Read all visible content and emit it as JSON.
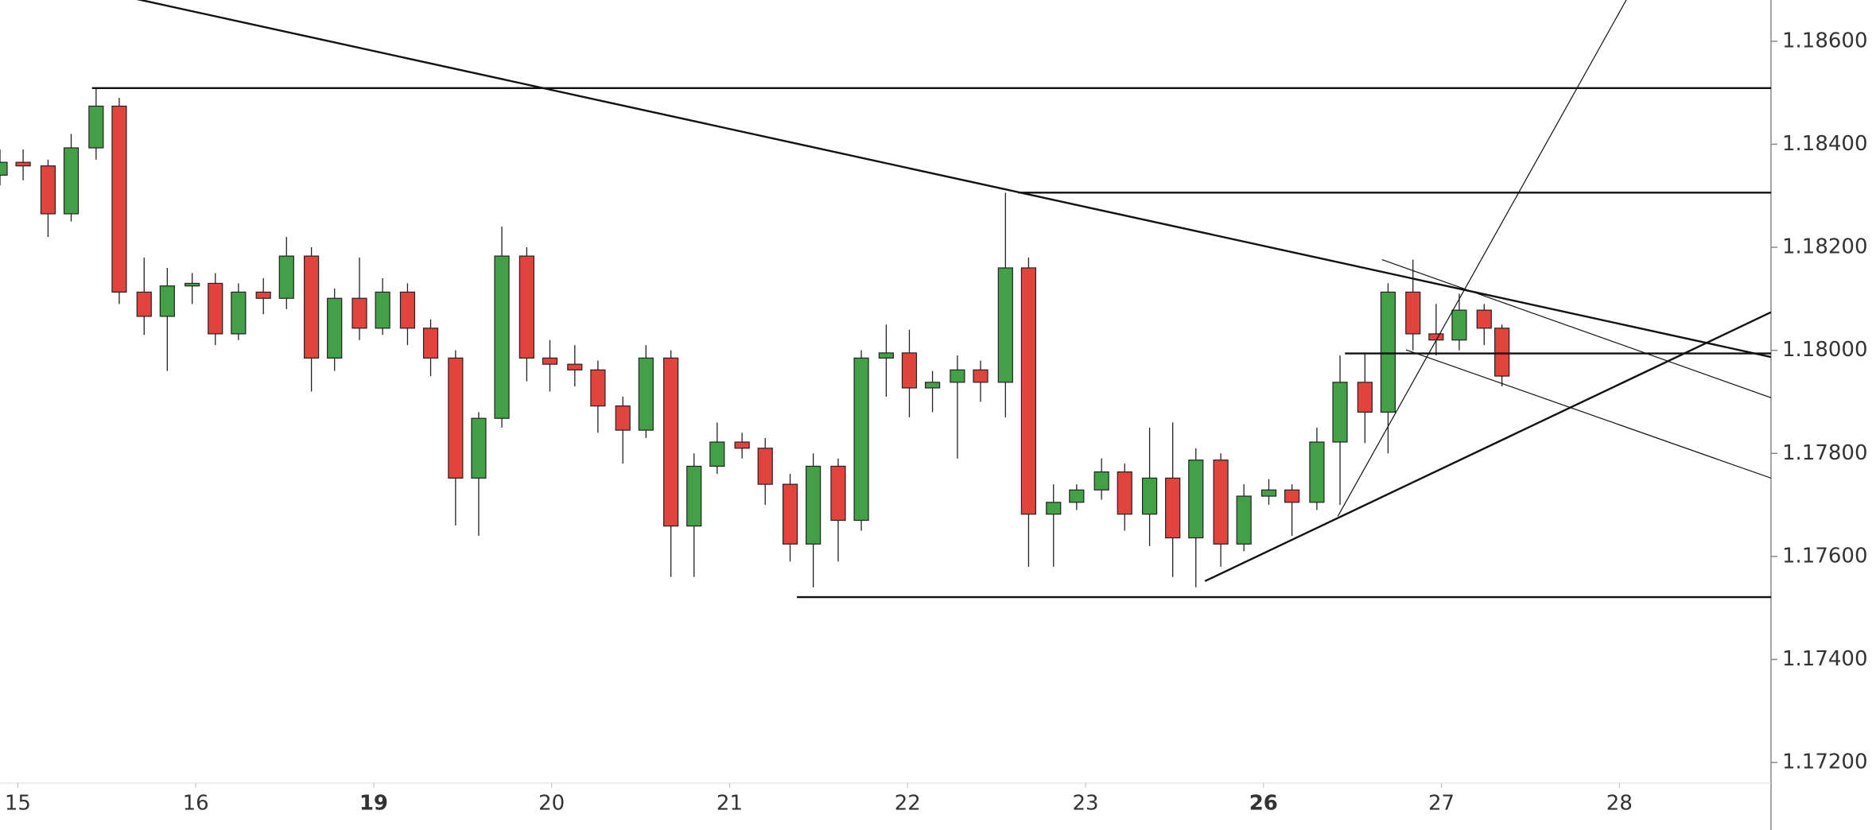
{
  "chart_data": {
    "type": "candlestick",
    "xlim": [
      -0.1,
      9.852
    ],
    "ylim": [
      1.1716,
      1.1868
    ],
    "xticks": [
      {
        "value": 0,
        "label": "15"
      },
      {
        "value": 1,
        "label": "16"
      },
      {
        "value": 2,
        "label": "19",
        "bold": true
      },
      {
        "value": 3,
        "label": "20"
      },
      {
        "value": 4,
        "label": "21"
      },
      {
        "value": 5,
        "label": "22"
      },
      {
        "value": 6,
        "label": "23"
      },
      {
        "value": 7,
        "label": "26",
        "bold": true
      },
      {
        "value": 8,
        "label": "27"
      },
      {
        "value": 9,
        "label": "28"
      }
    ],
    "yticks": [
      {
        "value": 1.186,
        "label": "1.18600"
      },
      {
        "value": 1.184,
        "label": "1.18400"
      },
      {
        "value": 1.182,
        "label": "1.18200"
      },
      {
        "value": 1.18,
        "label": "1.18000"
      },
      {
        "value": 1.178,
        "label": "1.17800"
      },
      {
        "value": 1.176,
        "label": "1.17600"
      },
      {
        "value": 1.174,
        "label": "1.17400"
      },
      {
        "value": 1.172,
        "label": "1.17200"
      }
    ],
    "up_color": "#43a047",
    "down_color": "#e0443c",
    "line_color": "#111111",
    "x": [
      -0.1,
      0.03,
      0.17,
      0.3,
      0.44,
      0.57,
      0.71,
      0.84,
      0.98,
      1.11,
      1.24,
      1.38,
      1.51,
      1.65,
      1.78,
      1.92,
      2.05,
      2.19,
      2.32,
      2.46,
      2.59,
      2.72,
      2.86,
      2.99,
      3.13,
      3.26,
      3.4,
      3.53,
      3.67,
      3.8,
      3.93,
      4.07,
      4.2,
      4.34,
      4.47,
      4.61,
      4.74,
      4.88,
      5.01,
      5.14,
      5.28,
      5.41,
      5.55,
      5.68,
      5.82,
      5.95,
      6.09,
      6.22,
      6.36,
      6.49,
      6.62,
      6.76,
      6.89,
      7.03,
      7.16,
      7.3,
      7.43,
      7.57,
      7.7,
      7.84,
      7.97,
      8.1,
      8.24,
      8.34
    ],
    "open": [
      1.1834,
      1.18365,
      1.18358,
      1.18265,
      1.18393,
      1.18474,
      1.18113,
      1.18066,
      1.18125,
      1.1813,
      1.18032,
      1.18113,
      1.18101,
      1.18183,
      1.17985,
      1.18101,
      1.18043,
      1.18113,
      1.18043,
      1.17985,
      1.17752,
      1.17868,
      1.18183,
      1.17985,
      1.17973,
      1.17962,
      1.17892,
      1.17845,
      1.17985,
      1.17659,
      1.17775,
      1.17822,
      1.1781,
      1.1774,
      1.17624,
      1.17775,
      1.1767,
      1.17985,
      1.17995,
      1.17927,
      1.17938,
      1.17962,
      1.17938,
      1.1816,
      1.17682,
      1.17705,
      1.17729,
      1.17764,
      1.17682,
      1.17752,
      1.17636,
      1.17787,
      1.17624,
      1.17717,
      1.17729,
      1.17705,
      1.17822,
      1.17938,
      1.1788,
      1.18113,
      1.18032,
      1.1802,
      1.18078,
      1.18043
    ],
    "high": [
      1.1839,
      1.1839,
      1.1837,
      1.1842,
      1.18509,
      1.1849,
      1.1818,
      1.1816,
      1.1815,
      1.1815,
      1.1813,
      1.1814,
      1.1822,
      1.182,
      1.1812,
      1.1818,
      1.1814,
      1.1813,
      1.1806,
      1.18,
      1.1788,
      1.1824,
      1.182,
      1.1802,
      1.1801,
      1.1798,
      1.1791,
      1.1801,
      1.18,
      1.178,
      1.1786,
      1.1784,
      1.1783,
      1.1776,
      1.178,
      1.1779,
      1.18,
      1.1805,
      1.1804,
      1.1796,
      1.1799,
      1.1798,
      1.18306,
      1.1818,
      1.1774,
      1.1774,
      1.1779,
      1.1778,
      1.1785,
      1.1786,
      1.1781,
      1.178,
      1.1774,
      1.1775,
      1.1774,
      1.1785,
      1.1799,
      1.17994,
      1.1813,
      1.18176,
      1.1809,
      1.1811,
      1.1809,
      1.1805
    ],
    "low": [
      1.1832,
      1.1833,
      1.1822,
      1.1825,
      1.1837,
      1.1809,
      1.1803,
      1.1796,
      1.1809,
      1.1801,
      1.1802,
      1.1807,
      1.1808,
      1.1792,
      1.1796,
      1.1802,
      1.1803,
      1.1801,
      1.1795,
      1.1766,
      1.1764,
      1.1785,
      1.1794,
      1.1792,
      1.1793,
      1.1784,
      1.1778,
      1.1783,
      1.1756,
      1.1756,
      1.1776,
      1.1779,
      1.177,
      1.1759,
      1.1754,
      1.1759,
      1.1765,
      1.1791,
      1.1787,
      1.1788,
      1.1779,
      1.179,
      1.1787,
      1.1758,
      1.1758,
      1.1769,
      1.1771,
      1.1765,
      1.1762,
      1.1756,
      1.1754,
      1.1758,
      1.1761,
      1.177,
      1.1764,
      1.1769,
      1.177,
      1.1782,
      1.178,
      1.18,
      1.1799,
      1.18,
      1.1801,
      1.1793
    ],
    "close": [
      1.18365,
      1.18358,
      1.18265,
      1.18393,
      1.18474,
      1.18113,
      1.18066,
      1.18125,
      1.1813,
      1.18032,
      1.18113,
      1.18101,
      1.18183,
      1.17985,
      1.18101,
      1.18043,
      1.18113,
      1.18043,
      1.17985,
      1.17752,
      1.17868,
      1.18183,
      1.17985,
      1.17973,
      1.17962,
      1.17892,
      1.17845,
      1.17985,
      1.17659,
      1.17775,
      1.17822,
      1.1781,
      1.1774,
      1.17624,
      1.17775,
      1.1767,
      1.17985,
      1.17995,
      1.17927,
      1.17938,
      1.17962,
      1.17938,
      1.1816,
      1.17682,
      1.17705,
      1.17729,
      1.17764,
      1.17682,
      1.17752,
      1.17636,
      1.17787,
      1.17624,
      1.17717,
      1.17729,
      1.17705,
      1.17822,
      1.17938,
      1.1788,
      1.18113,
      1.18032,
      1.1802,
      1.18078,
      1.18043,
      1.1795
    ],
    "lines": [
      {
        "x": [
          0.639,
          9.852
        ],
        "y": [
          1.18684,
          1.17987
        ],
        "width": 2.4
      },
      {
        "x": [
          0.417,
          9.852
        ],
        "y": [
          1.18509,
          1.18509
        ],
        "width": 2.4
      },
      {
        "x": [
          5.622,
          9.852
        ],
        "y": [
          1.18306,
          1.18306
        ],
        "width": 2.4
      },
      {
        "x": [
          4.378,
          9.852
        ],
        "y": [
          1.17521,
          1.17521
        ],
        "width": 2.4
      },
      {
        "x": [
          7.458,
          9.852
        ],
        "y": [
          1.17994,
          1.17994
        ],
        "width": 2.4
      },
      {
        "x": [
          6.671,
          9.852
        ],
        "y": [
          1.17552,
          1.18074
        ],
        "width": 2.4
      },
      {
        "x": [
          7.418,
          9.045
        ],
        "y": [
          1.17678,
          1.18684
        ],
        "width": 1.2
      },
      {
        "x": [
          7.666,
          9.852
        ],
        "y": [
          1.18176,
          1.17908
        ],
        "width": 1.2
      },
      {
        "x": [
          7.801,
          9.852
        ],
        "y": [
          1.18001,
          1.17752
        ],
        "width": 1.2
      }
    ]
  }
}
